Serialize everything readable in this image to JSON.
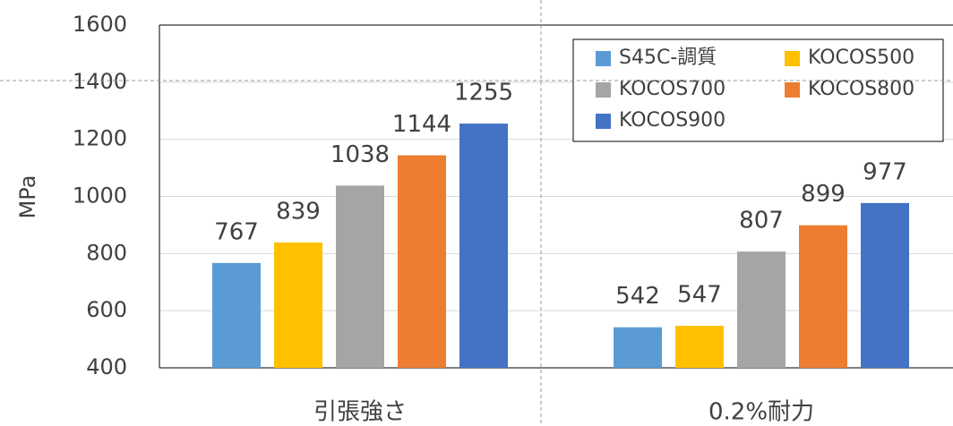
{
  "chart_data": {
    "type": "bar",
    "categories": [
      "引張強さ",
      "0.2%耐力"
    ],
    "y_label": "MPa",
    "series": [
      {
        "name": "S45C-調質",
        "color": "#5b9bd5",
        "values": [
          767,
          542
        ]
      },
      {
        "name": "KOCOS500",
        "color": "#ffc000",
        "values": [
          839,
          547
        ]
      },
      {
        "name": "KOCOS700",
        "color": "#a5a5a5",
        "values": [
          1038,
          807
        ]
      },
      {
        "name": "KOCOS800",
        "color": "#ed7d31",
        "values": [
          1144,
          899
        ]
      },
      {
        "name": "KOCOS900",
        "color": "#4472c4",
        "values": [
          1255,
          977
        ]
      }
    ],
    "ylim": [
      400,
      1600
    ],
    "yticks": [
      400,
      600,
      800,
      1000,
      1200,
      1400,
      1600
    ],
    "grid": true,
    "legend": "upper right"
  }
}
